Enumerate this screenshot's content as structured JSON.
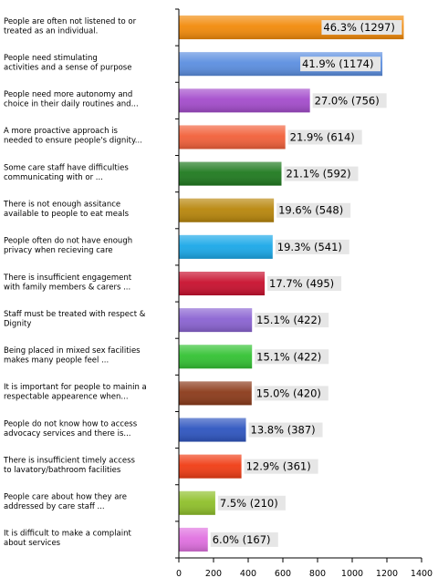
{
  "chart_data": {
    "type": "bar",
    "orientation": "horizontal",
    "categories": [
      [
        "People are often not listened to or",
        "treated as an individual."
      ],
      [
        "People need stimulating",
        "activities and a sense of purpose"
      ],
      [
        "People need more autonomy and",
        "choice in their daily routines and..."
      ],
      [
        "A more proactive approach is",
        "needed to ensure people's dignity..."
      ],
      [
        "Some care staff have difficulties",
        "communicating with or ..."
      ],
      [
        "There is not enough assitance",
        "available to people to eat meals"
      ],
      [
        "People often do not have enough",
        "privacy when recieving care"
      ],
      [
        "There is insufficient engagement",
        "with family members & carers ..."
      ],
      [
        "Staff must be treated with respect &",
        "Dignity"
      ],
      [
        "Being placed in mixed sex facilities",
        "makes many people feel ..."
      ],
      [
        "It is important for people to mainin a",
        "respectable appearence when..."
      ],
      [
        "People do not know how to access",
        "advocacy services and there is..."
      ],
      [
        "There is insufficient timely access",
        "to lavatory/bathroom facilities"
      ],
      [
        "People care about how they are",
        "addressed by care staff ..."
      ],
      [
        "It is difficult to make a complaint",
        "about services"
      ]
    ],
    "values": [
      1297,
      1174,
      756,
      614,
      592,
      548,
      541,
      495,
      422,
      422,
      420,
      387,
      361,
      210,
      167
    ],
    "data_labels": [
      "46.3% (1297)",
      "41.9% (1174)",
      "27.0% (756)",
      "21.9% (614)",
      "21.1% (592)",
      "19.6% (548)",
      "19.3% (541)",
      "17.7% (495)",
      "15.1% (422)",
      "15.1% (422)",
      "15.0% (420)",
      "13.8% (387)",
      "12.9% (361)",
      "7.5% (210)",
      "6.0% (167)"
    ],
    "colors": [
      "#f28a0a",
      "#5b8ee0",
      "#a44ccc",
      "#f2603a",
      "#1f7a1f",
      "#b8860b",
      "#1aa8e8",
      "#c8102e",
      "#8a63d2",
      "#33c233",
      "#8b3a1a",
      "#2e55c0",
      "#f03c14",
      "#8fc02a",
      "#e070e0"
    ],
    "xticks": [
      0,
      200,
      400,
      600,
      800,
      1000,
      1200,
      1400
    ],
    "xlim": [
      0,
      1400
    ],
    "grid": false,
    "legend": "none",
    "title": "",
    "xlabel": "",
    "ylabel": ""
  }
}
